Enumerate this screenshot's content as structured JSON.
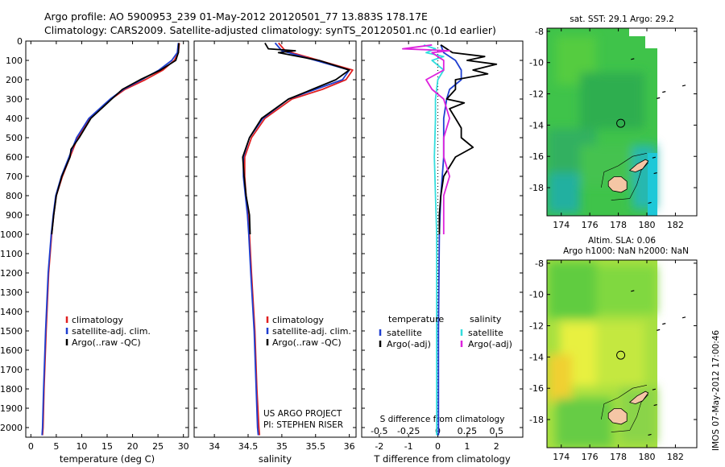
{
  "header": {
    "title_line1": "Argo profile: AO 5900953_239 01-May-2012 20120501_77 13.883S 178.17E",
    "title_line2": "Climatology: CARS2009. Satellite-adjusted climatology: synTS_20120501.nc (0.1d earlier)"
  },
  "credits": {
    "project": "US ARGO PROJECT",
    "pi": "PI: STEPHEN RISER",
    "stamp": "IMOS 07-May-2012 17:00:46"
  },
  "colors": {
    "climatology": "#e02020",
    "satellite": "#1f3fd0",
    "argo": "#000000",
    "sal_satellite": "#33dddd",
    "sal_argo": "#dd22dd",
    "land": "#f5c6a5"
  },
  "chart_data": [
    {
      "type": "line",
      "name": "temperature-panel",
      "xlabel": "temperature (deg C)",
      "ylabel": "",
      "xlim": [
        -1,
        31
      ],
      "ylim": [
        2050,
        0
      ],
      "xticks": [
        0,
        5,
        10,
        15,
        20,
        25,
        30
      ],
      "yticks": [
        0,
        100,
        200,
        300,
        400,
        500,
        600,
        700,
        800,
        900,
        1000,
        1100,
        1200,
        1300,
        1400,
        1500,
        1600,
        1700,
        1800,
        1900,
        2000
      ],
      "legend": [
        "climatology",
        "satellite-adj. clim.",
        "Argo(..raw -QC)"
      ],
      "legend_position": "lower-left",
      "series": [
        {
          "name": "climatology",
          "depth": [
            10,
            60,
            100,
            150,
            200,
            250,
            300,
            400,
            500,
            600,
            700,
            800,
            900,
            1000,
            1200,
            1500,
            1800,
            2000,
            2040
          ],
          "values": [
            29.2,
            29.0,
            28.2,
            26.0,
            22.5,
            18.5,
            15.8,
            11.5,
            9.2,
            7.7,
            6.2,
            5.0,
            4.5,
            4.1,
            3.5,
            3.0,
            2.6,
            2.4,
            2.3
          ]
        },
        {
          "name": "satellite-adj. clim.",
          "depth": [
            10,
            60,
            100,
            150,
            200,
            250,
            300,
            400,
            500,
            600,
            700,
            800,
            900,
            1000,
            1200,
            1500,
            1800,
            2000,
            2040
          ],
          "values": [
            29.0,
            28.8,
            27.7,
            25.2,
            21.8,
            18.2,
            15.6,
            11.4,
            9.0,
            7.5,
            6.0,
            4.9,
            4.4,
            4.0,
            3.4,
            2.9,
            2.5,
            2.3,
            2.2
          ]
        },
        {
          "name": "Argo(..raw -QC)",
          "depth": [
            10,
            60,
            100,
            150,
            200,
            250,
            300,
            400,
            500,
            560,
            600,
            700,
            800,
            900,
            1000
          ],
          "values": [
            29.1,
            29.0,
            28.5,
            25.5,
            21.5,
            18.0,
            15.9,
            11.8,
            9.5,
            7.9,
            7.7,
            6.1,
            5.0,
            4.5,
            4.1
          ]
        }
      ]
    },
    {
      "type": "line",
      "name": "salinity-panel",
      "xlabel": "salinity",
      "ylabel": "",
      "xlim": [
        33.7,
        36.1
      ],
      "ylim": [
        2050,
        0
      ],
      "xticks": [
        34,
        34.5,
        35,
        35.5,
        36
      ],
      "legend": [
        "climatology",
        "satellite-adj. clim.",
        "Argo(..raw -QC)"
      ],
      "legend_position": "lower-right",
      "series": [
        {
          "name": "climatology",
          "depth": [
            10,
            50,
            100,
            150,
            200,
            250,
            300,
            400,
            500,
            600,
            700,
            800,
            900,
            1000,
            1200,
            1500,
            1800,
            2000,
            2040
          ],
          "values": [
            34.95,
            35.05,
            35.55,
            36.05,
            35.95,
            35.6,
            35.15,
            34.75,
            34.55,
            34.45,
            34.45,
            34.47,
            34.5,
            34.52,
            34.55,
            34.6,
            34.63,
            34.66,
            34.67
          ]
        },
        {
          "name": "satellite-adj. clim.",
          "depth": [
            10,
            50,
            100,
            150,
            200,
            250,
            300,
            400,
            500,
            600,
            700,
            800,
            900,
            1000,
            1200,
            1500,
            1800,
            2000,
            2040
          ],
          "values": [
            34.9,
            35.0,
            35.5,
            36.0,
            35.9,
            35.5,
            35.1,
            34.72,
            34.52,
            34.43,
            34.43,
            34.46,
            34.49,
            34.51,
            34.54,
            34.59,
            34.62,
            34.64,
            34.65
          ]
        },
        {
          "name": "Argo(..raw -QC)",
          "depth": [
            10,
            40,
            50,
            60,
            100,
            150,
            200,
            250,
            300,
            400,
            500,
            600,
            700,
            800,
            900,
            1000
          ],
          "values": [
            34.75,
            34.8,
            35.2,
            34.95,
            35.55,
            36.0,
            35.8,
            35.45,
            35.1,
            34.7,
            34.52,
            34.42,
            34.44,
            34.47,
            34.52,
            34.53
          ]
        }
      ]
    },
    {
      "type": "line",
      "name": "difference-panel",
      "xlabel": "T difference from climatology",
      "top_label": "S difference from climatology",
      "xlim": [
        -2.6,
        2.9
      ],
      "ylim": [
        2050,
        0
      ],
      "xticks": [
        -2,
        -1,
        0,
        1,
        2
      ],
      "top_ticks": [
        -0.5,
        -0.25,
        0,
        0.25,
        0.5
      ],
      "top_tick_labels": [
        "-0.5",
        "-0.25",
        "0",
        "0.25",
        "0.5"
      ],
      "legend_groups": [
        {
          "title": "temperature",
          "entries": [
            "satellite",
            "Argo(-adj)"
          ]
        },
        {
          "title": "salinity",
          "entries": [
            "satellite",
            "Argo(-adj)"
          ]
        }
      ],
      "series": [
        {
          "name": "temperature satellite",
          "depth": [
            20,
            60,
            100,
            150,
            200,
            250,
            300,
            400,
            500,
            600,
            800,
            1000,
            1500,
            2040
          ],
          "values": [
            0.1,
            0.2,
            0.6,
            0.8,
            0.8,
            0.4,
            0.3,
            0.2,
            0.2,
            0.2,
            0.1,
            0.05,
            0.02,
            0.02
          ]
        },
        {
          "name": "temperature Argo(-adj)",
          "depth": [
            20,
            60,
            80,
            100,
            120,
            150,
            170,
            200,
            250,
            300,
            320,
            350,
            400,
            450,
            500,
            550,
            600,
            700,
            800,
            900,
            1000
          ],
          "values": [
            0.1,
            0.5,
            1.6,
            1.0,
            2.0,
            1.2,
            1.7,
            0.6,
            0.6,
            0.3,
            0.9,
            0.4,
            0.6,
            0.8,
            0.8,
            1.2,
            0.6,
            0.2,
            0.1,
            0.05,
            0.05
          ]
        },
        {
          "name": "salinity satellite",
          "depth": [
            20,
            40,
            60,
            80,
            100,
            150,
            200,
            300,
            400,
            600,
            800,
            1000,
            1500,
            2040
          ],
          "values": [
            -0.12,
            -0.02,
            -0.1,
            0.05,
            -0.05,
            0.05,
            0.0,
            -0.02,
            -0.02,
            -0.03,
            -0.02,
            -0.01,
            -0.01,
            -0.01
          ]
        },
        {
          "name": "salinity Argo(-adj)",
          "depth": [
            20,
            40,
            50,
            60,
            80,
            100,
            150,
            200,
            250,
            300,
            400,
            500,
            600,
            700,
            800,
            900,
            1000
          ],
          "values": [
            -0.05,
            -0.3,
            0.1,
            -0.05,
            0.0,
            0.05,
            0.05,
            -0.1,
            -0.05,
            0.05,
            0.1,
            0.05,
            0.05,
            0.1,
            0.05,
            0.05,
            0.05
          ]
        }
      ]
    },
    {
      "type": "heatmap",
      "name": "sst-map",
      "title": "sat. SST: 29.1 Argo: 29.2",
      "xlim": [
        173,
        183.5
      ],
      "ylim": [
        -19.8,
        -7.8
      ],
      "xticks": [
        174,
        176,
        178,
        180,
        182
      ],
      "yticks": [
        -8,
        -10,
        -12,
        -14,
        -16,
        -18
      ],
      "marker": {
        "lon": 178.17,
        "lat": -13.883
      }
    },
    {
      "type": "heatmap",
      "name": "sla-map",
      "title": "Altim. SLA: 0.06",
      "subtitle": "Argo h1000: NaN h2000: NaN",
      "xlim": [
        173,
        183.5
      ],
      "ylim": [
        -19.8,
        -7.8
      ],
      "xticks": [
        174,
        176,
        178,
        180,
        182
      ],
      "yticks": [
        -8,
        -10,
        -12,
        -14,
        -16,
        -18
      ],
      "marker": {
        "lon": 178.17,
        "lat": -13.883
      }
    }
  ]
}
